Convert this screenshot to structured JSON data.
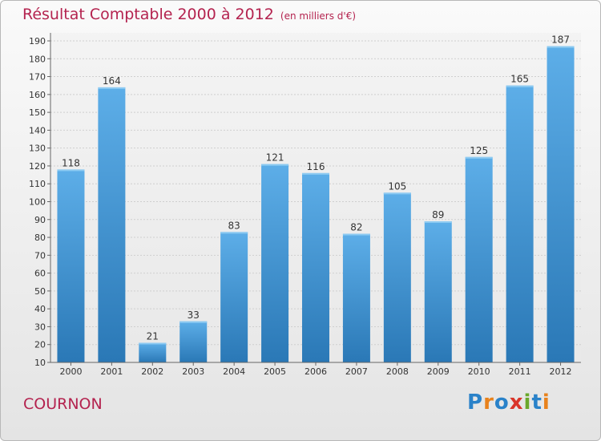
{
  "header": {
    "title": "Résultat Comptable 2000 à 2012",
    "subtitle": "(en milliers d'€)"
  },
  "footer": {
    "city": "COURNON",
    "logo": "Proxiti"
  },
  "colors": {
    "title": "#b4234f",
    "bar_light": "#5daee8",
    "bar_dark": "#2a78b6",
    "logo_letters": [
      "#2a82c9",
      "#e8821c",
      "#2a82c9",
      "#d9352a",
      "#6aa82c",
      "#2a82c9",
      "#e8821c"
    ]
  },
  "chart_data": {
    "type": "bar",
    "title": "Résultat Comptable 2000 à 2012",
    "subtitle": "(en milliers d'€)",
    "categories": [
      "2000",
      "2001",
      "2002",
      "2003",
      "2004",
      "2005",
      "2006",
      "2007",
      "2008",
      "2009",
      "2010",
      "2011",
      "2012"
    ],
    "values": [
      118,
      164,
      21,
      33,
      83,
      121,
      116,
      82,
      105,
      89,
      125,
      165,
      187
    ],
    "data_labels": [
      "118",
      "164",
      "21",
      "33",
      "83",
      "121",
      "116",
      "82",
      "105",
      "89",
      "125",
      "165",
      "187"
    ],
    "y_ticks": [
      "10",
      "20",
      "30",
      "40",
      "50",
      "60",
      "70",
      "80",
      "90",
      "100",
      "110",
      "120",
      "130",
      "140",
      "150",
      "160",
      "170",
      "180",
      "190"
    ],
    "ylim": [
      10,
      190
    ],
    "grid": true,
    "legend": "none"
  }
}
